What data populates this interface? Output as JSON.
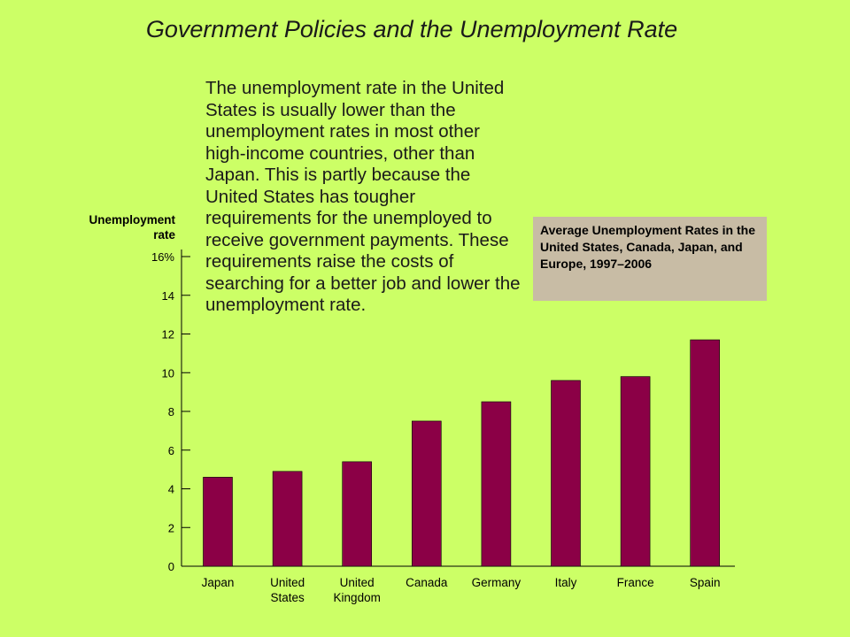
{
  "slide": {
    "title": "Government Policies and the Unemployment Rate",
    "note": "The unemployment rate in the United States is usually lower than the unemployment rates in most other high-income countries, other than Japan. This is partly because the United States has tougher requirements for the unemployed to receive government payments. These requirements raise the costs of searching for a better job and lower the unemployment rate."
  },
  "colors": {
    "background": "#ccff66",
    "bar": "#8b0046",
    "legend_box": "#c8bca5"
  },
  "chart_data": {
    "type": "bar",
    "title": "Average Unemployment Rates in the United States, Canada, Japan, and Europe, 1997–2006",
    "ylabel_lines": [
      "Unemployment",
      "rate"
    ],
    "categories": [
      [
        "Japan"
      ],
      [
        "United",
        "States"
      ],
      [
        "United",
        "Kingdom"
      ],
      [
        "Canada"
      ],
      [
        "Germany"
      ],
      [
        "Italy"
      ],
      [
        "France"
      ],
      [
        "Spain"
      ]
    ],
    "values": [
      4.6,
      4.9,
      5.4,
      7.5,
      8.5,
      9.6,
      9.8,
      11.7
    ],
    "ylim": [
      0,
      16
    ],
    "yticks": [
      "0",
      "2",
      "4",
      "6",
      "8",
      "10",
      "12",
      "14",
      "16%"
    ],
    "grid": false
  }
}
